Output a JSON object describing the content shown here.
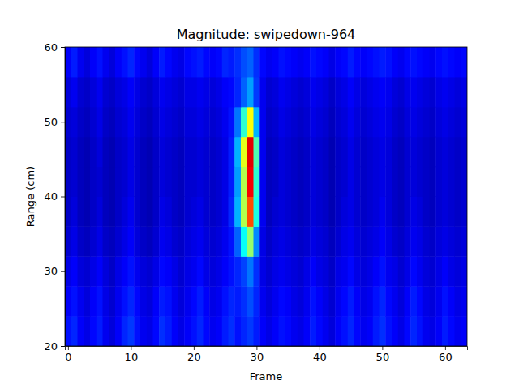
{
  "chart_data": {
    "type": "heatmap",
    "title": "Magnitude: swipedown-964",
    "x_label": "Frame",
    "y_label": "Range (cm)",
    "xlim": [
      -0.5,
      63.5
    ],
    "xticks": [
      0,
      10,
      20,
      30,
      40,
      50,
      60
    ],
    "ylim": [
      20,
      60
    ],
    "yticks": [
      20,
      30,
      40,
      50,
      60
    ],
    "zlim": [
      0,
      1
    ],
    "x": [
      0,
      1,
      2,
      3,
      4,
      5,
      6,
      7,
      8,
      9,
      10,
      11,
      12,
      13,
      14,
      15,
      16,
      17,
      18,
      19,
      20,
      21,
      22,
      23,
      24,
      25,
      26,
      27,
      28,
      29,
      30,
      31,
      32,
      33,
      34,
      35,
      36,
      37,
      38,
      39,
      40,
      41,
      42,
      43,
      44,
      45,
      46,
      47,
      48,
      49,
      50,
      51,
      52,
      53,
      54,
      55,
      56,
      57,
      58,
      59,
      60,
      61,
      62,
      63
    ],
    "y": [
      22,
      26,
      30,
      34,
      38,
      42,
      46,
      50,
      54,
      58
    ],
    "z": [
      [
        0.14,
        0.16,
        0.12,
        0.1,
        0.13,
        0.15,
        0.11,
        0.09,
        0.12,
        0.16,
        0.18,
        0.14,
        0.11,
        0.1,
        0.13,
        0.17,
        0.15,
        0.12,
        0.1,
        0.12,
        0.14,
        0.16,
        0.13,
        0.11,
        0.12,
        0.15,
        0.17,
        0.14,
        0.16,
        0.18,
        0.15,
        0.12,
        0.1,
        0.12,
        0.14,
        0.13,
        0.11,
        0.1,
        0.12,
        0.15,
        0.13,
        0.11,
        0.09,
        0.12,
        0.14,
        0.16,
        0.13,
        0.11,
        0.12,
        0.15,
        0.17,
        0.14,
        0.12,
        0.1,
        0.13,
        0.16,
        0.14,
        0.11,
        0.1,
        0.12,
        0.15,
        0.13,
        0.11,
        0.12
      ],
      [
        0.12,
        0.14,
        0.11,
        0.09,
        0.12,
        0.14,
        0.1,
        0.08,
        0.11,
        0.14,
        0.16,
        0.13,
        0.1,
        0.09,
        0.12,
        0.15,
        0.14,
        0.11,
        0.09,
        0.11,
        0.13,
        0.15,
        0.12,
        0.1,
        0.11,
        0.14,
        0.16,
        0.15,
        0.17,
        0.2,
        0.16,
        0.11,
        0.09,
        0.11,
        0.13,
        0.12,
        0.1,
        0.09,
        0.11,
        0.14,
        0.12,
        0.1,
        0.08,
        0.11,
        0.13,
        0.15,
        0.12,
        0.1,
        0.11,
        0.14,
        0.16,
        0.13,
        0.11,
        0.09,
        0.12,
        0.15,
        0.13,
        0.1,
        0.09,
        0.11,
        0.14,
        0.12,
        0.1,
        0.11
      ],
      [
        0.1,
        0.12,
        0.09,
        0.08,
        0.1,
        0.12,
        0.09,
        0.07,
        0.1,
        0.12,
        0.14,
        0.11,
        0.09,
        0.08,
        0.1,
        0.13,
        0.12,
        0.1,
        0.08,
        0.1,
        0.11,
        0.13,
        0.1,
        0.09,
        0.1,
        0.12,
        0.14,
        0.16,
        0.19,
        0.24,
        0.17,
        0.1,
        0.08,
        0.1,
        0.11,
        0.1,
        0.09,
        0.08,
        0.1,
        0.12,
        0.1,
        0.09,
        0.07,
        0.1,
        0.11,
        0.13,
        0.1,
        0.09,
        0.1,
        0.12,
        0.14,
        0.11,
        0.1,
        0.08,
        0.1,
        0.13,
        0.11,
        0.09,
        0.08,
        0.1,
        0.12,
        0.1,
        0.09,
        0.1
      ],
      [
        0.08,
        0.1,
        0.07,
        0.06,
        0.08,
        0.1,
        0.07,
        0.06,
        0.08,
        0.1,
        0.12,
        0.09,
        0.07,
        0.06,
        0.08,
        0.11,
        0.1,
        0.08,
        0.07,
        0.09,
        0.1,
        0.11,
        0.09,
        0.08,
        0.09,
        0.11,
        0.14,
        0.22,
        0.38,
        0.52,
        0.26,
        0.1,
        0.07,
        0.09,
        0.1,
        0.09,
        0.08,
        0.07,
        0.08,
        0.1,
        0.09,
        0.08,
        0.06,
        0.08,
        0.1,
        0.11,
        0.09,
        0.08,
        0.09,
        0.1,
        0.12,
        0.1,
        0.08,
        0.07,
        0.09,
        0.11,
        0.1,
        0.08,
        0.07,
        0.09,
        0.1,
        0.09,
        0.08,
        0.09
      ],
      [
        0.07,
        0.09,
        0.06,
        0.05,
        0.07,
        0.09,
        0.06,
        0.05,
        0.07,
        0.09,
        0.11,
        0.08,
        0.06,
        0.05,
        0.07,
        0.1,
        0.09,
        0.07,
        0.06,
        0.08,
        0.09,
        0.1,
        0.08,
        0.07,
        0.08,
        0.1,
        0.16,
        0.3,
        0.55,
        0.8,
        0.4,
        0.11,
        0.06,
        0.08,
        0.09,
        0.08,
        0.07,
        0.06,
        0.07,
        0.09,
        0.08,
        0.07,
        0.05,
        0.07,
        0.09,
        0.1,
        0.08,
        0.07,
        0.08,
        0.09,
        0.11,
        0.09,
        0.07,
        0.06,
        0.08,
        0.1,
        0.09,
        0.07,
        0.06,
        0.08,
        0.09,
        0.08,
        0.07,
        0.08
      ],
      [
        0.07,
        0.08,
        0.06,
        0.05,
        0.07,
        0.08,
        0.06,
        0.05,
        0.07,
        0.08,
        0.1,
        0.08,
        0.06,
        0.05,
        0.07,
        0.09,
        0.08,
        0.07,
        0.06,
        0.08,
        0.08,
        0.09,
        0.08,
        0.07,
        0.08,
        0.1,
        0.15,
        0.28,
        0.55,
        0.88,
        0.42,
        0.11,
        0.06,
        0.07,
        0.09,
        0.08,
        0.07,
        0.06,
        0.07,
        0.09,
        0.08,
        0.07,
        0.05,
        0.07,
        0.08,
        0.1,
        0.08,
        0.07,
        0.08,
        0.09,
        0.1,
        0.09,
        0.07,
        0.06,
        0.08,
        0.09,
        0.08,
        0.07,
        0.06,
        0.08,
        0.09,
        0.08,
        0.07,
        0.08
      ],
      [
        0.07,
        0.08,
        0.06,
        0.05,
        0.07,
        0.09,
        0.06,
        0.05,
        0.07,
        0.08,
        0.1,
        0.08,
        0.06,
        0.05,
        0.07,
        0.09,
        0.08,
        0.07,
        0.06,
        0.08,
        0.08,
        0.09,
        0.08,
        0.07,
        0.08,
        0.1,
        0.15,
        0.3,
        0.6,
        0.9,
        0.45,
        0.11,
        0.06,
        0.07,
        0.09,
        0.08,
        0.07,
        0.06,
        0.07,
        0.09,
        0.08,
        0.07,
        0.05,
        0.07,
        0.08,
        0.1,
        0.08,
        0.07,
        0.08,
        0.09,
        0.1,
        0.09,
        0.07,
        0.06,
        0.08,
        0.09,
        0.08,
        0.07,
        0.06,
        0.08,
        0.09,
        0.08,
        0.07,
        0.08
      ],
      [
        0.08,
        0.09,
        0.07,
        0.06,
        0.08,
        0.1,
        0.07,
        0.06,
        0.08,
        0.09,
        0.11,
        0.09,
        0.07,
        0.06,
        0.08,
        0.1,
        0.09,
        0.08,
        0.07,
        0.09,
        0.09,
        0.1,
        0.09,
        0.08,
        0.09,
        0.11,
        0.14,
        0.24,
        0.42,
        0.62,
        0.3,
        0.11,
        0.07,
        0.08,
        0.1,
        0.09,
        0.08,
        0.07,
        0.08,
        0.1,
        0.09,
        0.08,
        0.06,
        0.08,
        0.09,
        0.11,
        0.09,
        0.08,
        0.09,
        0.1,
        0.11,
        0.1,
        0.08,
        0.07,
        0.09,
        0.1,
        0.09,
        0.08,
        0.07,
        0.09,
        0.1,
        0.09,
        0.08,
        0.09
      ],
      [
        0.09,
        0.11,
        0.08,
        0.07,
        0.09,
        0.11,
        0.08,
        0.07,
        0.09,
        0.1,
        0.12,
        0.1,
        0.08,
        0.07,
        0.09,
        0.11,
        0.1,
        0.09,
        0.08,
        0.1,
        0.1,
        0.11,
        0.1,
        0.09,
        0.1,
        0.12,
        0.13,
        0.16,
        0.22,
        0.28,
        0.18,
        0.11,
        0.08,
        0.09,
        0.11,
        0.1,
        0.09,
        0.08,
        0.09,
        0.11,
        0.1,
        0.09,
        0.07,
        0.09,
        0.1,
        0.12,
        0.1,
        0.09,
        0.1,
        0.11,
        0.12,
        0.11,
        0.09,
        0.08,
        0.1,
        0.11,
        0.1,
        0.09,
        0.08,
        0.1,
        0.11,
        0.1,
        0.09,
        0.1
      ],
      [
        0.12,
        0.15,
        0.11,
        0.09,
        0.12,
        0.14,
        0.11,
        0.09,
        0.12,
        0.14,
        0.16,
        0.13,
        0.11,
        0.09,
        0.12,
        0.15,
        0.13,
        0.11,
        0.1,
        0.13,
        0.14,
        0.15,
        0.13,
        0.12,
        0.13,
        0.16,
        0.15,
        0.17,
        0.2,
        0.22,
        0.17,
        0.13,
        0.11,
        0.12,
        0.14,
        0.13,
        0.12,
        0.11,
        0.12,
        0.14,
        0.13,
        0.12,
        0.1,
        0.12,
        0.13,
        0.15,
        0.13,
        0.12,
        0.13,
        0.14,
        0.15,
        0.14,
        0.12,
        0.11,
        0.13,
        0.14,
        0.13,
        0.12,
        0.11,
        0.13,
        0.14,
        0.13,
        0.12,
        0.13
      ]
    ]
  }
}
